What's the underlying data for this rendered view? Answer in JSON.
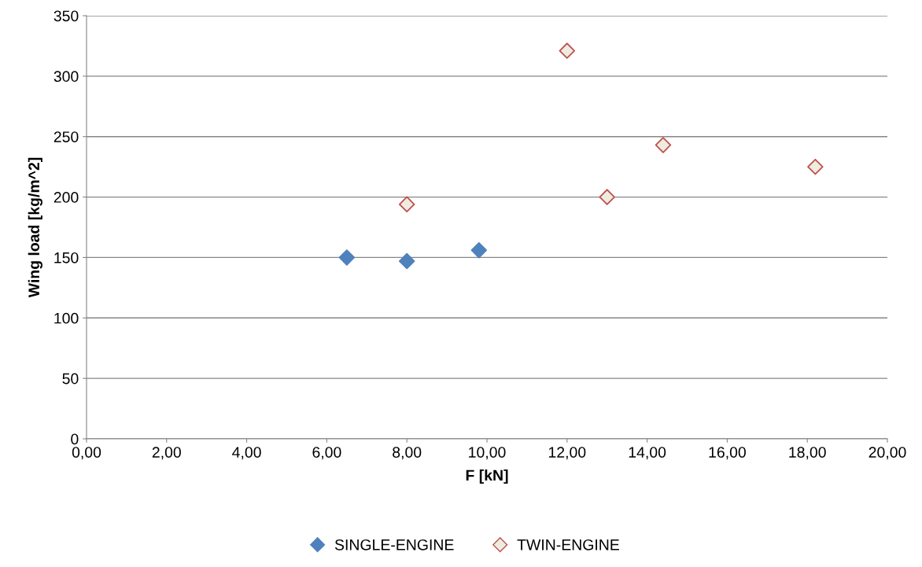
{
  "chart_data": {
    "type": "scatter",
    "xlabel": "F [kN]",
    "ylabel": "Wing load [kg/m^2]",
    "series": [
      {
        "name": "SINGLE-ENGINE",
        "color": "#4f81bd",
        "x": [
          6.5,
          8.0,
          9.8
        ],
        "values": [
          150,
          147,
          156
        ]
      },
      {
        "name": "TWIN-ENGINE",
        "color": "#c0504d",
        "x": [
          8.0,
          12.0,
          13.0,
          14.4,
          18.2
        ],
        "values": [
          194,
          321,
          200,
          243,
          225
        ]
      }
    ],
    "xlim": [
      0,
      20
    ],
    "xticks": [
      {
        "value": 0,
        "label": "0,00"
      },
      {
        "value": 2,
        "label": "2,00"
      },
      {
        "value": 4,
        "label": "4,00"
      },
      {
        "value": 6,
        "label": "6,00"
      },
      {
        "value": 8,
        "label": "8,00"
      },
      {
        "value": 10,
        "label": "10,00"
      },
      {
        "value": 12,
        "label": "12,00"
      },
      {
        "value": 14,
        "label": "14,00"
      },
      {
        "value": 16,
        "label": "16,00"
      },
      {
        "value": 18,
        "label": "18,00"
      },
      {
        "value": 20,
        "label": "20,00"
      }
    ],
    "ylim": [
      0,
      350
    ],
    "yticks": [
      0,
      50,
      100,
      150,
      200,
      250,
      300,
      350
    ],
    "grid": "y",
    "legend": "bottom",
    "marker": "diamond"
  }
}
